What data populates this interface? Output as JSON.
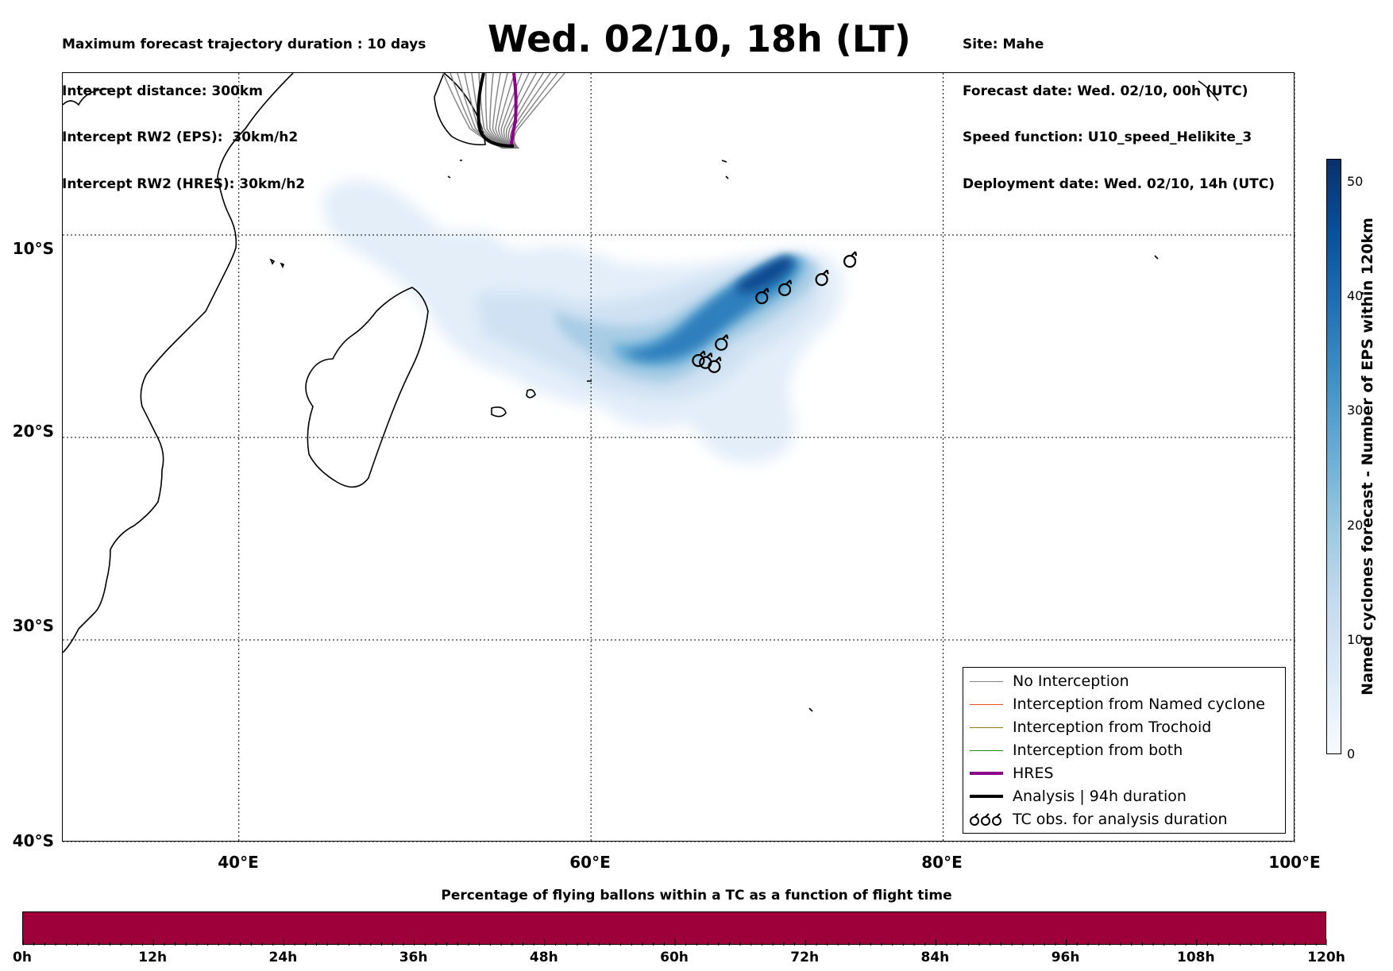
{
  "header": {
    "left_lines": [
      "Maximum forecast trajectory duration : 10 days",
      "Intercept distance: 300km",
      "Intercept RW2 (EPS):  30km/h2",
      "Intercept RW2 (HRES): 30km/h2"
    ],
    "title": "Wed. 02/10, 18h (LT)",
    "right_lines": [
      "Site: Mahe",
      "Forecast date: Wed. 02/10, 00h (UTC)",
      "Speed function: U10_speed_Helikite_3",
      "Deployment date: Wed. 02/10, 14h (UTC)"
    ]
  },
  "map": {
    "lon_range": [
      30,
      100
    ],
    "lat_range": [
      -2,
      -40
    ],
    "lat_gridlines": [
      {
        "value": -10,
        "label": "10°S"
      },
      {
        "value": -20,
        "label": "20°S"
      },
      {
        "value": -30,
        "label": "30°S"
      },
      {
        "value": -40,
        "label": "40°S"
      }
    ],
    "lon_gridlines": [
      {
        "value": 40,
        "label": "40°E"
      },
      {
        "value": 60,
        "label": "60°E"
      },
      {
        "value": 80,
        "label": "80°E"
      },
      {
        "value": 100,
        "label": "100°E"
      }
    ],
    "tc_observations": [
      [
        74.7,
        -11.3
      ],
      [
        73.1,
        -12.2
      ],
      [
        71.0,
        -12.7
      ],
      [
        69.7,
        -13.1
      ],
      [
        67.4,
        -15.4
      ],
      [
        66.1,
        -16.2
      ],
      [
        66.5,
        -16.3
      ],
      [
        67.0,
        -16.5
      ]
    ],
    "ensemble_density_colors": [
      "#f7fbff",
      "#deebf7",
      "#c6dbef",
      "#9ecae1",
      "#6baed6",
      "#4292c6",
      "#2171b5",
      "#08519c",
      "#08306b"
    ]
  },
  "legend": {
    "items": [
      {
        "label": "No Interception",
        "color": "#808080",
        "width": 1.5
      },
      {
        "label": "Interception from Named cyclone",
        "color": "#e8501f",
        "width": 1.5
      },
      {
        "label": "Interception from Trochoid",
        "color": "#8a7a1a",
        "width": 1.5
      },
      {
        "label": "Interception from both",
        "color": "#1a8a1a",
        "width": 1.5
      },
      {
        "label": "HRES",
        "color": "#8b008b",
        "width": 4
      },
      {
        "label": "Analysis | 94h duration",
        "color": "#000000",
        "width": 4
      },
      {
        "label": "TC obs. for analysis duration",
        "color": "#000000",
        "width": 0
      }
    ]
  },
  "colorbar": {
    "title": "Named cyclones forecast - Number of EPS within 120km",
    "ticks": [
      "0",
      "10",
      "20",
      "30",
      "40",
      "50"
    ],
    "range": [
      0,
      52
    ]
  },
  "percentage_bar": {
    "title": "Percentage of flying ballons within a TC as a function of flight time",
    "color": "#9e003a",
    "ticks": [
      "0h",
      "12h",
      "24h",
      "36h",
      "48h",
      "60h",
      "72h",
      "84h",
      "96h",
      "108h",
      "120h"
    ]
  }
}
